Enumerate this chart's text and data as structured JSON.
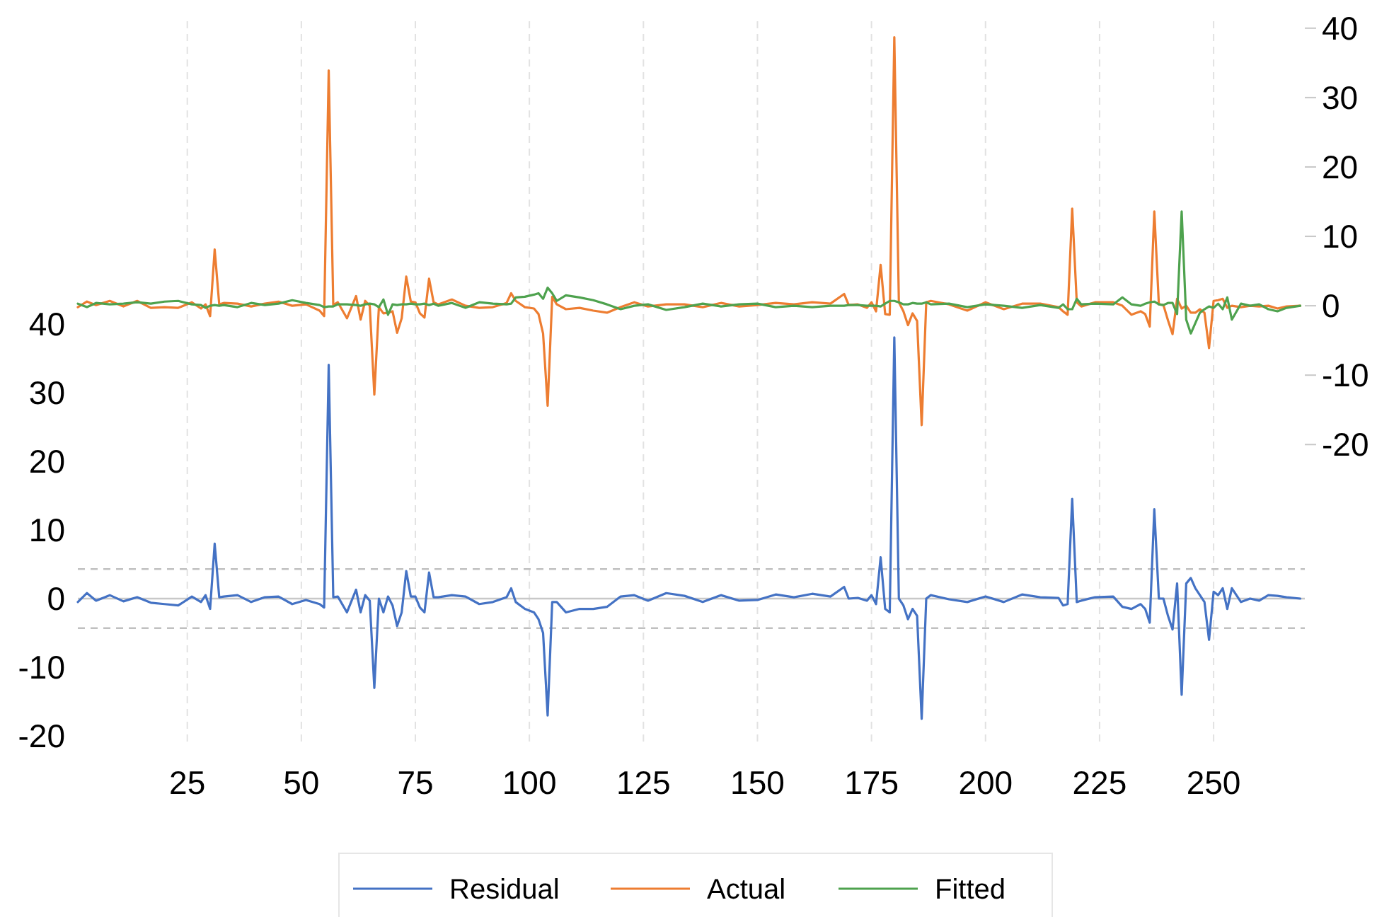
{
  "chart_data": {
    "type": "line",
    "xlim": [
      1,
      270
    ],
    "xticks": [
      25,
      50,
      75,
      100,
      125,
      150,
      175,
      200,
      225,
      250
    ],
    "ylim": [
      -21,
      84
    ],
    "yticks": [
      -20,
      -10,
      0,
      10,
      20,
      30,
      40
    ],
    "y2lim": [
      -63,
      41
    ],
    "y2ticks": [
      -20,
      -10,
      0,
      10,
      20,
      30,
      40
    ],
    "grid": "x",
    "legend": "bottom",
    "x": [
      1,
      3,
      5,
      8,
      11,
      14,
      17,
      20,
      23,
      26,
      28,
      29,
      30,
      31,
      32,
      33,
      36,
      39,
      42,
      45,
      48,
      51,
      54,
      55,
      56,
      57,
      58,
      60,
      62,
      63,
      64,
      65,
      66,
      67,
      68,
      69,
      70,
      71,
      72,
      73,
      74,
      75,
      76,
      77,
      78,
      79,
      80,
      83,
      86,
      89,
      92,
      95,
      96,
      97,
      99,
      101,
      102,
      103,
      104,
      105,
      106,
      108,
      111,
      114,
      117,
      120,
      123,
      126,
      130,
      134,
      138,
      142,
      146,
      150,
      154,
      158,
      162,
      166,
      169,
      170,
      172,
      174,
      175,
      176,
      177,
      178,
      179,
      180,
      181,
      182,
      183,
      184,
      185,
      186,
      187,
      188,
      192,
      196,
      200,
      204,
      208,
      212,
      216,
      217,
      218,
      219,
      220,
      221,
      224,
      228,
      230,
      232,
      234,
      235,
      236,
      237,
      238,
      239,
      240,
      241,
      242,
      243,
      244,
      245,
      246,
      247,
      248,
      249,
      250,
      251,
      252,
      253,
      254,
      256,
      258,
      260,
      262,
      264,
      266,
      269
    ],
    "series": [
      {
        "name": "Residual",
        "color": "#4472c4",
        "values": [
          -0.5,
          0.8,
          -0.3,
          0.5,
          -0.4,
          0.2,
          -0.6,
          -0.8,
          -1.0,
          0.3,
          -0.5,
          0.5,
          -1.5,
          8,
          0.2,
          0.3,
          0.5,
          -0.5,
          0.2,
          0.3,
          -0.8,
          -0.2,
          -0.8,
          -1.3,
          34,
          0.2,
          0.3,
          -2.0,
          1.3,
          -2.0,
          0.5,
          -0.3,
          -13,
          0,
          -2,
          0.3,
          -1,
          -4,
          -2,
          4,
          0.3,
          0.3,
          -1.3,
          -2,
          3.8,
          0.2,
          0.2,
          0.5,
          0.3,
          -0.8,
          -0.5,
          0.2,
          1.5,
          -0.5,
          -1.5,
          -2,
          -3,
          -5,
          -17,
          -0.5,
          -0.5,
          -2,
          -1.5,
          -1.5,
          -1.2,
          0.3,
          0.5,
          -0.3,
          0.8,
          0.4,
          -0.5,
          0.5,
          -0.3,
          -0.2,
          0.6,
          0.2,
          0.7,
          0.3,
          1.7,
          0,
          0.1,
          -0.3,
          0.5,
          -0.8,
          6,
          -1.5,
          -2,
          38,
          0,
          -1,
          -3,
          -1.5,
          -2.5,
          -17.5,
          0,
          0.5,
          -0.1,
          -0.5,
          0.3,
          -0.5,
          0.6,
          0.2,
          0.1,
          -1.0,
          -0.8,
          14.5,
          -0.5,
          -0.3,
          0.2,
          0.3,
          -1.2,
          -1.5,
          -0.8,
          -1.5,
          -3.5,
          13,
          0,
          0,
          -2.5,
          -4.5,
          2.2,
          -14,
          2.2,
          3,
          1.5,
          0.5,
          -0.5,
          -6,
          1.0,
          0.5,
          1.5,
          -1.5,
          1.5,
          -0.5,
          0,
          -0.3,
          0.5,
          0.4,
          0.2,
          0
        ]
      },
      {
        "name": "Actual",
        "color": "#ed7d31",
        "axis": "y2",
        "values": [
          -0.2,
          0.6,
          0.1,
          0.7,
          -0.1,
          0.7,
          -0.3,
          -0.2,
          -0.3,
          0.5,
          -0.4,
          0.2,
          -1.5,
          8.1,
          0.2,
          0.4,
          0.3,
          -0.1,
          0.3,
          0.6,
          0,
          0.2,
          -0.7,
          -1.5,
          33.9,
          0.1,
          0.5,
          -1.8,
          1.4,
          -2.0,
          0.7,
          0,
          -12.8,
          -0.2,
          -1.1,
          -1,
          -0.8,
          -3.9,
          -1.8,
          4.2,
          0.6,
          0.5,
          -1.1,
          -1.7,
          3.9,
          0.5,
          0.2,
          0.9,
          0,
          -0.3,
          -0.2,
          0.4,
          1.8,
          0.7,
          -0.2,
          -0.4,
          -1.2,
          -4,
          -14.4,
          1.3,
          0.2,
          -0.5,
          -0.3,
          -0.7,
          -1.0,
          -0.2,
          0.5,
          -0.1,
          0.2,
          0.2,
          -0.2,
          0.4,
          -0.1,
          0.1,
          0.4,
          0.2,
          0.5,
          0.3,
          1.7,
          0.1,
          0.2,
          -0.3,
          0.5,
          -0.8,
          5.9,
          -1.2,
          -1.3,
          38.7,
          0.5,
          -0.8,
          -2.8,
          -1.1,
          -2.2,
          -17.2,
          0.5,
          0.7,
          0.2,
          -0.7,
          0.5,
          -0.5,
          0.3,
          0.3,
          -0.2,
          -0.8,
          -1.3,
          14,
          0.5,
          -0.1,
          0.5,
          0.5,
          0,
          -1.3,
          -0.8,
          -1.2,
          -3.0,
          13.6,
          0.2,
          0.1,
          -2.1,
          -4.1,
          1.0,
          -0.4,
          0,
          -1.0,
          -1.0,
          -0.5,
          -1.0,
          -6.1,
          0.7,
          0.8,
          1.0,
          -0.3,
          0,
          -0.2,
          0,
          -0.1,
          0,
          -0.4,
          -0.1,
          0
        ]
      },
      {
        "name": "Fitted",
        "color": "#4ea24e",
        "axis": "y2",
        "values": [
          0.3,
          -0.2,
          0.4,
          0.2,
          0.3,
          0.5,
          0.3,
          0.6,
          0.7,
          0.2,
          0.1,
          -0.3,
          0.0,
          0.1,
          0,
          0.1,
          -0.2,
          0.4,
          0.1,
          0.3,
          0.8,
          0.4,
          0.1,
          -0.2,
          -0.1,
          -0.1,
          0.2,
          0.2,
          0.1,
          0.0,
          0.2,
          0.3,
          0.2,
          -0.2,
          0.9,
          -1.3,
          0.2,
          0.1,
          0.2,
          0.2,
          0.3,
          0.2,
          0.2,
          0.3,
          0.1,
          0.3,
          0,
          0.4,
          -0.3,
          0.5,
          0.3,
          0.2,
          0.3,
          1.2,
          1.3,
          1.6,
          1.8,
          1.0,
          2.6,
          1.8,
          0.7,
          1.5,
          1.2,
          0.8,
          0.2,
          -0.5,
          0,
          0.2,
          -0.6,
          -0.2,
          0.3,
          -0.1,
          0.2,
          0.3,
          -0.2,
          0,
          -0.2,
          0,
          0,
          0.1,
          0.1,
          0,
          0,
          0,
          -0.1,
          0.3,
          0.7,
          0.7,
          0.5,
          0.2,
          0.2,
          0.4,
          0.3,
          0.3,
          0.5,
          0.2,
          0.3,
          -0.2,
          0.2,
          0,
          -0.3,
          0.1,
          -0.3,
          0.2,
          -0.5,
          -0.5,
          1.0,
          0.2,
          0.3,
          0.2,
          1.2,
          0.2,
          0,
          0.3,
          0.5,
          0.6,
          0.2,
          0.1,
          0.4,
          0.4,
          -1.2,
          13.6,
          -2.0,
          -4.0,
          -2.5,
          -1.0,
          -0.5,
          -0.1,
          -0.3,
          0.3,
          -0.5,
          1.2,
          -2.0,
          0.3,
          0,
          0.2,
          -0.5,
          -0.8,
          -0.3,
          0
        ]
      }
    ],
    "ref_lines": [
      {
        "axis": "y",
        "value": 0,
        "color": "#c8c8c8",
        "line_style": "solid"
      },
      {
        "axis": "y",
        "value": 4.3,
        "color": "#c0c0c0",
        "line_style": "dashed"
      },
      {
        "axis": "y",
        "value": -4.3,
        "color": "#c0c0c0",
        "line_style": "dashed"
      }
    ]
  }
}
